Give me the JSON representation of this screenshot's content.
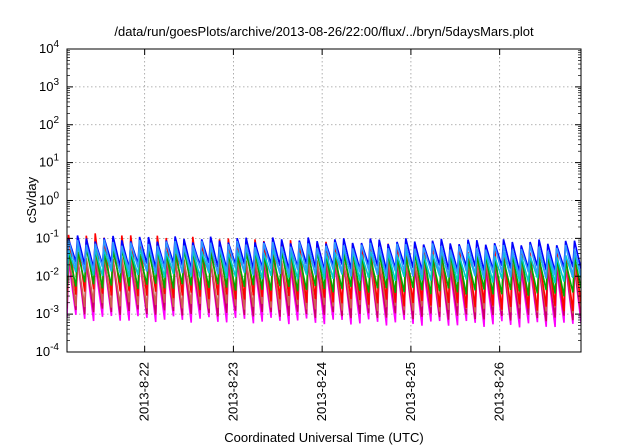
{
  "chart_data": {
    "type": "line",
    "title": "/data/run/goesPlots/archive/2013-08-26/22:00/flux/../bryn/5daysMars.plot",
    "xlabel": "Coordinated Universal Time (UTC)",
    "ylabel": "cSv/day",
    "yscale": "log",
    "ylim": [
      0.0001,
      10000
    ],
    "y_ticks": [
      {
        "value": 0.0001,
        "base": "10",
        "exp": "-4"
      },
      {
        "value": 0.001,
        "base": "10",
        "exp": "-3"
      },
      {
        "value": 0.01,
        "base": "10",
        "exp": "-2"
      },
      {
        "value": 0.1,
        "base": "10",
        "exp": "-1"
      },
      {
        "value": 1,
        "base": "10",
        "exp": "0"
      },
      {
        "value": 10,
        "base": "10",
        "exp": "1"
      },
      {
        "value": 100,
        "base": "10",
        "exp": "2"
      },
      {
        "value": 1000,
        "base": "10",
        "exp": "3"
      },
      {
        "value": 10000,
        "base": "10",
        "exp": "4"
      }
    ],
    "xlim": [
      "2013-08-21 03:00",
      "2013-08-26 22:00"
    ],
    "x_ticks": [
      "2013-8-22",
      "2013-8-23",
      "2013-8-24",
      "2013-8-25",
      "2013-8-26"
    ],
    "grid": true,
    "cycles_per_day": 10,
    "series": [
      {
        "color": "#ff00ff",
        "peak": 0.025,
        "trough": 0.0008,
        "trend": -0.05
      },
      {
        "color": "#cc0066",
        "peak": 0.03,
        "trough": 0.0012,
        "trend": -0.05
      },
      {
        "color": "#d06050",
        "peak": 0.035,
        "trough": 0.0018,
        "trend": -0.04
      },
      {
        "color": "#ff0000",
        "peak": 0.12,
        "trough": 0.004,
        "trend": -0.12
      },
      {
        "color": "#00aa00",
        "peak": 0.05,
        "trough": 0.006,
        "trend": -0.06
      },
      {
        "color": "#00cccc",
        "peak": 0.06,
        "trough": 0.012,
        "trend": -0.05
      },
      {
        "color": "#0000ff",
        "peak": 0.1,
        "trough": 0.02,
        "trend": -0.03
      },
      {
        "color": "#3399ff",
        "peak": 0.08,
        "trough": 0.015,
        "trend": -0.04
      }
    ]
  }
}
